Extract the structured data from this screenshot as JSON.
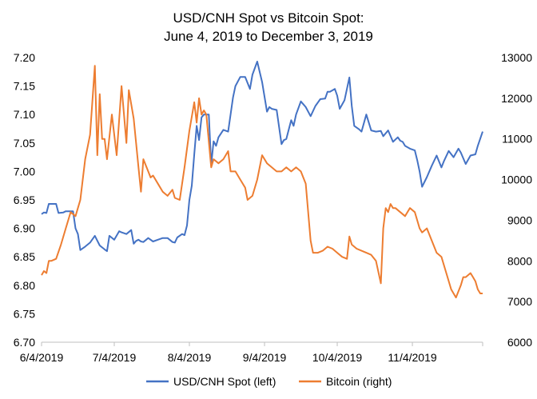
{
  "chart_data": {
    "type": "line",
    "title_line1": "USD/CNH  Spot vs Bitcoin Spot:",
    "title_line2": "June 4, 2019 to December 3, 2019",
    "x_start": "2019-06-04",
    "x_end": "2019-12-03",
    "x_tick_labels": [
      "6/4/2019",
      "7/4/2019",
      "8/4/2019",
      "9/4/2019",
      "10/4/2019",
      "11/4/2019"
    ],
    "x_tick_dates": [
      "2019-06-04",
      "2019-07-04",
      "2019-08-04",
      "2019-09-04",
      "2019-10-04",
      "2019-11-04"
    ],
    "y_left_range": [
      6.7,
      7.2
    ],
    "y_left_ticks": [
      "7.20",
      "7.15",
      "7.10",
      "7.05",
      "7.00",
      "6.95",
      "6.90",
      "6.85",
      "6.80",
      "6.75",
      "6.70"
    ],
    "y_right_range": [
      6000,
      13000
    ],
    "y_right_ticks": [
      "13000",
      "12000",
      "11000",
      "10000",
      "9000",
      "8000",
      "7000",
      "6000"
    ],
    "grid": false,
    "legend_position": "bottom",
    "series": [
      {
        "name": "USD/CNH Spot (left)",
        "axis": "left",
        "color": "#4472C4",
        "x": [
          "2019-06-04",
          "2019-06-05",
          "2019-06-06",
          "2019-06-07",
          "2019-06-08",
          "2019-06-10",
          "2019-06-11",
          "2019-06-13",
          "2019-06-14",
          "2019-06-16",
          "2019-06-17",
          "2019-06-18",
          "2019-06-19",
          "2019-06-20",
          "2019-06-22",
          "2019-06-24",
          "2019-06-26",
          "2019-06-28",
          "2019-06-30",
          "2019-07-01",
          "2019-07-02",
          "2019-07-04",
          "2019-07-06",
          "2019-07-07",
          "2019-07-09",
          "2019-07-11",
          "2019-07-12",
          "2019-07-13",
          "2019-07-14",
          "2019-07-15",
          "2019-07-16",
          "2019-07-18",
          "2019-07-20",
          "2019-07-22",
          "2019-07-24",
          "2019-07-26",
          "2019-07-28",
          "2019-07-29",
          "2019-07-30",
          "2019-08-01",
          "2019-08-02",
          "2019-08-03",
          "2019-08-04",
          "2019-08-05",
          "2019-08-06",
          "2019-08-07",
          "2019-08-08",
          "2019-08-09",
          "2019-08-10",
          "2019-08-12",
          "2019-08-13",
          "2019-08-14",
          "2019-08-15",
          "2019-08-16",
          "2019-08-18",
          "2019-08-20",
          "2019-08-22",
          "2019-08-23",
          "2019-08-25",
          "2019-08-27",
          "2019-08-29",
          "2019-08-30",
          "2019-09-01",
          "2019-09-03",
          "2019-09-05",
          "2019-09-06",
          "2019-09-07",
          "2019-09-09",
          "2019-09-11",
          "2019-09-12",
          "2019-09-13",
          "2019-09-15",
          "2019-09-16",
          "2019-09-17",
          "2019-09-19",
          "2019-09-21",
          "2019-09-23",
          "2019-09-25",
          "2019-09-27",
          "2019-09-29",
          "2019-09-30",
          "2019-10-01",
          "2019-10-03",
          "2019-10-04",
          "2019-10-05",
          "2019-10-07",
          "2019-10-09",
          "2019-10-10",
          "2019-10-11",
          "2019-10-13",
          "2019-10-14",
          "2019-10-16",
          "2019-10-18",
          "2019-10-20",
          "2019-10-22",
          "2019-10-23",
          "2019-10-25",
          "2019-10-27",
          "2019-10-29",
          "2019-10-30",
          "2019-10-31",
          "2019-11-01",
          "2019-11-03",
          "2019-11-05",
          "2019-11-06",
          "2019-11-07",
          "2019-11-08",
          "2019-11-10",
          "2019-11-12",
          "2019-11-14",
          "2019-11-16",
          "2019-11-17",
          "2019-11-19",
          "2019-11-21",
          "2019-11-23",
          "2019-11-24",
          "2019-11-26",
          "2019-11-28",
          "2019-11-30",
          "2019-12-01",
          "2019-12-03"
        ],
        "values": [
          6.925,
          6.928,
          6.927,
          6.943,
          6.943,
          6.943,
          6.927,
          6.928,
          6.93,
          6.93,
          6.93,
          6.9,
          6.89,
          6.862,
          6.868,
          6.875,
          6.887,
          6.87,
          6.863,
          6.86,
          6.887,
          6.88,
          6.895,
          6.893,
          6.89,
          6.897,
          6.873,
          6.878,
          6.88,
          6.877,
          6.876,
          6.883,
          6.877,
          6.88,
          6.883,
          6.883,
          6.876,
          6.875,
          6.884,
          6.89,
          6.888,
          6.905,
          6.95,
          6.975,
          7.03,
          7.08,
          7.055,
          7.095,
          7.1,
          7.1,
          7.012,
          7.053,
          7.045,
          7.06,
          7.073,
          7.07,
          7.13,
          7.15,
          7.166,
          7.166,
          7.145,
          7.17,
          7.193,
          7.157,
          7.105,
          7.113,
          7.11,
          7.108,
          7.048,
          7.055,
          7.057,
          7.09,
          7.08,
          7.1,
          7.123,
          7.113,
          7.097,
          7.115,
          7.127,
          7.128,
          7.14,
          7.14,
          7.145,
          7.133,
          7.11,
          7.125,
          7.165,
          7.115,
          7.08,
          7.074,
          7.07,
          7.1,
          7.072,
          7.07,
          7.071,
          7.062,
          7.072,
          7.052,
          7.06,
          7.054,
          7.052,
          7.045,
          7.04,
          7.037,
          7.02,
          7.0,
          6.973,
          6.99,
          7.01,
          7.028,
          7.007,
          7.018,
          7.036,
          7.025,
          7.04,
          7.033,
          7.013,
          7.028,
          7.03,
          7.045,
          7.07
        ]
      },
      {
        "name": "Bitcoin (right)",
        "axis": "right",
        "color": "#ED7D31",
        "x": [
          "2019-06-04",
          "2019-06-05",
          "2019-06-06",
          "2019-06-07",
          "2019-06-08",
          "2019-06-10",
          "2019-06-12",
          "2019-06-14",
          "2019-06-16",
          "2019-06-18",
          "2019-06-20",
          "2019-06-22",
          "2019-06-24",
          "2019-06-26",
          "2019-06-27",
          "2019-06-28",
          "2019-06-29",
          "2019-06-30",
          "2019-07-01",
          "2019-07-03",
          "2019-07-05",
          "2019-07-07",
          "2019-07-09",
          "2019-07-10",
          "2019-07-12",
          "2019-07-14",
          "2019-07-15",
          "2019-07-16",
          "2019-07-18",
          "2019-07-19",
          "2019-07-20",
          "2019-07-22",
          "2019-07-24",
          "2019-07-26",
          "2019-07-28",
          "2019-07-29",
          "2019-07-31",
          "2019-08-02",
          "2019-08-04",
          "2019-08-06",
          "2019-08-07",
          "2019-08-08",
          "2019-08-09",
          "2019-08-10",
          "2019-08-11",
          "2019-08-13",
          "2019-08-14",
          "2019-08-16",
          "2019-08-18",
          "2019-08-20",
          "2019-08-21",
          "2019-08-23",
          "2019-08-25",
          "2019-08-27",
          "2019-08-28",
          "2019-08-30",
          "2019-09-01",
          "2019-09-03",
          "2019-09-05",
          "2019-09-07",
          "2019-09-09",
          "2019-09-11",
          "2019-09-13",
          "2019-09-15",
          "2019-09-17",
          "2019-09-19",
          "2019-09-21",
          "2019-09-23",
          "2019-09-24",
          "2019-09-26",
          "2019-09-28",
          "2019-09-30",
          "2019-10-02",
          "2019-10-04",
          "2019-10-06",
          "2019-10-08",
          "2019-10-09",
          "2019-10-10",
          "2019-10-12",
          "2019-10-14",
          "2019-10-16",
          "2019-10-18",
          "2019-10-20",
          "2019-10-22",
          "2019-10-23",
          "2019-10-24",
          "2019-10-25",
          "2019-10-26",
          "2019-10-27",
          "2019-10-28",
          "2019-10-30",
          "2019-11-01",
          "2019-11-03",
          "2019-11-05",
          "2019-11-07",
          "2019-11-08",
          "2019-11-10",
          "2019-11-12",
          "2019-11-14",
          "2019-11-16",
          "2019-11-18",
          "2019-11-20",
          "2019-11-21",
          "2019-11-22",
          "2019-11-24",
          "2019-11-25",
          "2019-11-26",
          "2019-11-28",
          "2019-11-29",
          "2019-11-30",
          "2019-12-01",
          "2019-12-02",
          "2019-12-03"
        ],
        "values": [
          7650,
          7750,
          7700,
          8000,
          8000,
          8050,
          8400,
          8800,
          9200,
          9100,
          9500,
          10500,
          11100,
          12800,
          10600,
          12100,
          11000,
          11000,
          10500,
          11600,
          10600,
          12300,
          10900,
          12200,
          11500,
          10300,
          9700,
          10500,
          10200,
          10050,
          10100,
          9900,
          9700,
          9600,
          9750,
          9550,
          9500,
          10300,
          11200,
          11900,
          11400,
          12000,
          11600,
          11700,
          11600,
          10300,
          10500,
          10400,
          10500,
          10700,
          10200,
          10200,
          10000,
          9800,
          9500,
          9600,
          10000,
          10600,
          10400,
          10300,
          10200,
          10200,
          10300,
          10200,
          10300,
          10200,
          9900,
          8500,
          8200,
          8200,
          8250,
          8350,
          8300,
          8200,
          8100,
          8050,
          8600,
          8400,
          8300,
          8250,
          8200,
          8150,
          8000,
          7450,
          8800,
          9300,
          9200,
          9400,
          9300,
          9300,
          9200,
          9100,
          9300,
          9200,
          8800,
          8700,
          8800,
          8500,
          8200,
          8100,
          7700,
          7300,
          7200,
          7100,
          7400,
          7600,
          7600,
          7700,
          7600,
          7500,
          7300,
          7200,
          7200
        ]
      }
    ]
  }
}
